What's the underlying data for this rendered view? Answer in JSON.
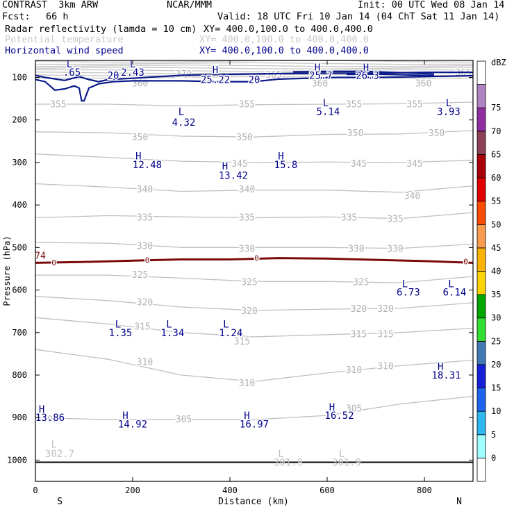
{
  "header": {
    "model": "CONTRAST  3km ARW",
    "org": "NCAR/MMM",
    "init": "Init: 00 UTC Wed 08 Jan 14",
    "fcst_label": "Fcst:",
    "fcst_value": "66 h",
    "valid": "Valid: 18 UTC Fri 10 Jan 14 (04 ChT Sat 11 Jan 14)",
    "fields": [
      {
        "name": "Radar reflectivity (lamda = 10 cm)",
        "xy": "XY= 400.0,100.0 to 400.0,400.0",
        "color": "#000000"
      },
      {
        "name": "Potential temperature",
        "xy": "XY= 400.0,100.0 to 400.0,400.0",
        "color": "#c8c8c8"
      },
      {
        "name": "Horizontal wind speed",
        "xy": "XY= 400.0,100.0 to 400.0,400.0",
        "color": "#00008b"
      }
    ]
  },
  "chart_data": {
    "type": "cross-section",
    "xlabel": "Distance (km)",
    "ylabel": "Pressure (hPa)",
    "xlim": [
      0,
      900
    ],
    "ylim": [
      1050,
      60
    ],
    "x_ticks": [
      0,
      200,
      400,
      600,
      800
    ],
    "y_ticks": [
      100,
      200,
      300,
      400,
      500,
      600,
      700,
      800,
      900,
      1000
    ],
    "end_labels": {
      "left": "S",
      "right": "N"
    },
    "theta_labels": [
      {
        "text": "360",
        "x": 215,
        "p": 113
      },
      {
        "text": "360",
        "x": 585,
        "p": 113
      },
      {
        "text": "360",
        "x": 798,
        "p": 113
      },
      {
        "text": "365",
        "x": 490,
        "p": 93
      },
      {
        "text": "365",
        "x": 880,
        "p": 88
      },
      {
        "text": "370",
        "x": 305,
        "p": 91
      },
      {
        "text": "355",
        "x": 47,
        "p": 162
      },
      {
        "text": "355",
        "x": 435,
        "p": 162
      },
      {
        "text": "355",
        "x": 655,
        "p": 162
      },
      {
        "text": "355",
        "x": 780,
        "p": 162
      },
      {
        "text": "350",
        "x": 215,
        "p": 240
      },
      {
        "text": "350",
        "x": 430,
        "p": 240
      },
      {
        "text": "350",
        "x": 658,
        "p": 230
      },
      {
        "text": "350",
        "x": 825,
        "p": 230
      },
      {
        "text": "345",
        "x": 420,
        "p": 302
      },
      {
        "text": "345",
        "x": 665,
        "p": 302
      },
      {
        "text": "345",
        "x": 780,
        "p": 302
      },
      {
        "text": "340",
        "x": 225,
        "p": 362
      },
      {
        "text": "340",
        "x": 435,
        "p": 362
      },
      {
        "text": "340",
        "x": 775,
        "p": 378
      },
      {
        "text": "335",
        "x": 225,
        "p": 428
      },
      {
        "text": "335",
        "x": 435,
        "p": 428
      },
      {
        "text": "335",
        "x": 645,
        "p": 428
      },
      {
        "text": "335",
        "x": 740,
        "p": 432
      },
      {
        "text": "330",
        "x": 225,
        "p": 495
      },
      {
        "text": "330",
        "x": 435,
        "p": 502
      },
      {
        "text": "330",
        "x": 660,
        "p": 502
      },
      {
        "text": "330",
        "x": 740,
        "p": 502
      },
      {
        "text": "325",
        "x": 215,
        "p": 563
      },
      {
        "text": "325",
        "x": 440,
        "p": 580
      },
      {
        "text": "325",
        "x": 670,
        "p": 580
      },
      {
        "text": "320",
        "x": 225,
        "p": 628
      },
      {
        "text": "320",
        "x": 440,
        "p": 648
      },
      {
        "text": "320",
        "x": 665,
        "p": 643
      },
      {
        "text": "320",
        "x": 720,
        "p": 643
      },
      {
        "text": "315",
        "x": 220,
        "p": 685
      },
      {
        "text": "315",
        "x": 425,
        "p": 720
      },
      {
        "text": "315",
        "x": 665,
        "p": 703
      },
      {
        "text": "315",
        "x": 720,
        "p": 703
      },
      {
        "text": "310",
        "x": 225,
        "p": 768
      },
      {
        "text": "310",
        "x": 435,
        "p": 818
      },
      {
        "text": "310",
        "x": 655,
        "p": 787
      },
      {
        "text": "310",
        "x": 720,
        "p": 778
      },
      {
        "text": "305",
        "x": 30,
        "p": 903
      },
      {
        "text": "305",
        "x": 305,
        "p": 903
      },
      {
        "text": "305",
        "x": 655,
        "p": 878
      }
    ],
    "wind_labels": [
      {
        "text": "H",
        "x": 370,
        "p": 82
      },
      {
        "text": "25.22",
        "x": 370,
        "p": 105
      },
      {
        "text": "20",
        "x": 160,
        "p": 95
      },
      {
        "text": "20",
        "x": 450,
        "p": 105
      },
      {
        "text": "2.43",
        "x": 200,
        "p": 88
      },
      {
        "text": "L",
        "x": 200,
        "p": 68
      },
      {
        "text": "L",
        "x": 70,
        "p": 68
      },
      {
        "text": ".65",
        "x": 75,
        "p": 88
      },
      {
        "text": "H",
        "x": 580,
        "p": 76
      },
      {
        "text": "25.7",
        "x": 587,
        "p": 95
      },
      {
        "text": "H",
        "x": 680,
        "p": 76
      },
      {
        "text": "26.3",
        "x": 683,
        "p": 95
      },
      {
        "text": "L",
        "x": 300,
        "p": 180
      },
      {
        "text": "4.32",
        "x": 305,
        "p": 205
      },
      {
        "text": "L",
        "x": 597,
        "p": 160
      },
      {
        "text": "5.14",
        "x": 602,
        "p": 180
      },
      {
        "text": "L",
        "x": 850,
        "p": 160
      },
      {
        "text": "3.93",
        "x": 850,
        "p": 180
      },
      {
        "text": "H",
        "x": 212,
        "p": 285
      },
      {
        "text": "12.48",
        "x": 230,
        "p": 305
      },
      {
        "text": "H",
        "x": 390,
        "p": 308
      },
      {
        "text": "13.42",
        "x": 407,
        "p": 330
      },
      {
        "text": "H",
        "x": 505,
        "p": 285
      },
      {
        "text": "15.8",
        "x": 515,
        "p": 305
      },
      {
        "text": "L",
        "x": 760,
        "p": 585
      },
      {
        "text": "6.73",
        "x": 767,
        "p": 605
      },
      {
        "text": "L",
        "x": 855,
        "p": 585
      },
      {
        "text": "6.14",
        "x": 862,
        "p": 605
      },
      {
        "text": "L",
        "x": 170,
        "p": 680
      },
      {
        "text": "1.35",
        "x": 175,
        "p": 700
      },
      {
        "text": "L",
        "x": 275,
        "p": 680
      },
      {
        "text": "1.34",
        "x": 282,
        "p": 700
      },
      {
        "text": "L",
        "x": 392,
        "p": 680
      },
      {
        "text": "1.24",
        "x": 402,
        "p": 700
      },
      {
        "text": "H",
        "x": 833,
        "p": 780
      },
      {
        "text": "18.31",
        "x": 845,
        "p": 800
      },
      {
        "text": "H",
        "x": 13,
        "p": 880
      },
      {
        "text": "13.86",
        "x": 30,
        "p": 900
      },
      {
        "text": "H",
        "x": 185,
        "p": 895
      },
      {
        "text": "14.92",
        "x": 200,
        "p": 915
      },
      {
        "text": "H",
        "x": 435,
        "p": 895
      },
      {
        "text": "16.97",
        "x": 450,
        "p": 915
      },
      {
        "text": "H",
        "x": 610,
        "p": 875
      },
      {
        "text": "16.52",
        "x": 625,
        "p": 895
      }
    ],
    "zero_contour_labels": [
      {
        "text": "0",
        "x": 38,
        "p": 535
      },
      {
        "text": "0",
        "x": 230,
        "p": 530
      },
      {
        "text": "0",
        "x": 455,
        "p": 525
      },
      {
        "text": "0",
        "x": 885,
        "p": 533
      }
    ],
    "light_labels": [
      {
        "text": "L",
        "x": 38,
        "p": 963
      },
      {
        "text": "302.7",
        "x": 50,
        "p": 985
      },
      {
        "text": "L",
        "x": 505,
        "p": 985
      },
      {
        "text": "301.9",
        "x": 520,
        "p": 1005
      },
      {
        "text": "L",
        "x": 630,
        "p": 985
      },
      {
        "text": "301.9",
        "x": 640,
        "p": 1005
      }
    ],
    "edge_label": {
      "text": "74",
      "x": 10,
      "p": 520
    },
    "theta_contours": [
      {
        "x": [
          0,
          150,
          300,
          450,
          600,
          750,
          900
        ],
        "p": [
          163,
          163,
          167,
          164,
          163,
          162,
          158
        ]
      },
      {
        "x": [
          0,
          150,
          300,
          450,
          600,
          750,
          900
        ],
        "p": [
          228,
          230,
          238,
          240,
          234,
          233,
          225
        ]
      },
      {
        "x": [
          0,
          150,
          300,
          450,
          600,
          750,
          900
        ],
        "p": [
          280,
          288,
          297,
          300,
          299,
          300,
          295
        ]
      },
      {
        "x": [
          0,
          150,
          300,
          450,
          600,
          750,
          900
        ],
        "p": [
          350,
          358,
          368,
          365,
          365,
          370,
          355
        ]
      },
      {
        "x": [
          0,
          150,
          300,
          450,
          600,
          750,
          900
        ],
        "p": [
          430,
          425,
          428,
          430,
          428,
          432,
          418
        ]
      },
      {
        "x": [
          0,
          150,
          300,
          450,
          600,
          750,
          900
        ],
        "p": [
          488,
          490,
          500,
          500,
          500,
          502,
          492
        ]
      },
      {
        "x": [
          0,
          150,
          300,
          450,
          600,
          750,
          900
        ],
        "p": [
          565,
          565,
          572,
          580,
          580,
          583,
          568
        ]
      },
      {
        "x": [
          0,
          150,
          300,
          450,
          600,
          750,
          900
        ],
        "p": [
          615,
          625,
          640,
          648,
          645,
          643,
          630
        ]
      },
      {
        "x": [
          0,
          150,
          300,
          450,
          600,
          750,
          900
        ],
        "p": [
          665,
          680,
          700,
          710,
          705,
          700,
          690
        ]
      },
      {
        "x": [
          0,
          150,
          300,
          450,
          600,
          750,
          900
        ],
        "p": [
          740,
          763,
          800,
          815,
          795,
          778,
          765
        ]
      },
      {
        "x": [
          0,
          150,
          300,
          450,
          600,
          750,
          900
        ],
        "p": [
          900,
          905,
          905,
          905,
          895,
          868,
          850
        ]
      }
    ],
    "upper_theta_band": {
      "p_top": 62,
      "p_bottom": 100
    },
    "wind_jet_contours": [
      {
        "x": [
          0,
          20,
          60,
          90,
          110,
          130,
          150,
          200,
          300,
          380,
          500,
          600,
          700,
          800,
          900
        ],
        "p": [
          95,
          100,
          107,
          98,
          105,
          110,
          105,
          102,
          95,
          93,
          91,
          90,
          90,
          88,
          88
        ]
      },
      {
        "x": [
          0,
          20,
          40,
          60,
          80,
          90,
          95,
          100,
          110,
          130,
          160,
          200,
          300,
          380,
          450,
          500,
          560,
          620,
          700,
          800,
          900
        ],
        "p": [
          105,
          110,
          130,
          127,
          120,
          125,
          155,
          155,
          125,
          115,
          110,
          108,
          108,
          110,
          110,
          104,
          102,
          100,
          100,
          98,
          96
        ]
      },
      {
        "x": [
          530,
          600,
          680,
          760,
          820
        ],
        "p": [
          87,
          86,
          86,
          89,
          92
        ]
      },
      {
        "x": [
          640,
          700,
          760,
          820
        ],
        "p": [
          93,
          92,
          94,
          96
        ]
      }
    ],
    "zero_contour": {
      "x": [
        0,
        100,
        200,
        300,
        400,
        500,
        600,
        700,
        800,
        900
      ],
      "p": [
        536,
        534,
        531,
        528,
        528,
        525,
        526,
        529,
        532,
        536
      ]
    },
    "surface_line_p": 1005,
    "colorbar": {
      "label": "dBZ",
      "levels": [
        0,
        5,
        10,
        15,
        20,
        25,
        30,
        35,
        40,
        45,
        50,
        55,
        60,
        65,
        70,
        75
      ],
      "colors": [
        "#ffffff",
        "#9ffffe",
        "#2fb7ef",
        "#1d63f0",
        "#1421d8",
        "#4179b3",
        "#32df32",
        "#00a600",
        "#fdd300",
        "#f9b300",
        "#fa9c50",
        "#fb4b00",
        "#e10000",
        "#a9000a",
        "#8d3f56",
        "#8f2e9f",
        "#b283c2",
        "#ffffff"
      ]
    }
  }
}
